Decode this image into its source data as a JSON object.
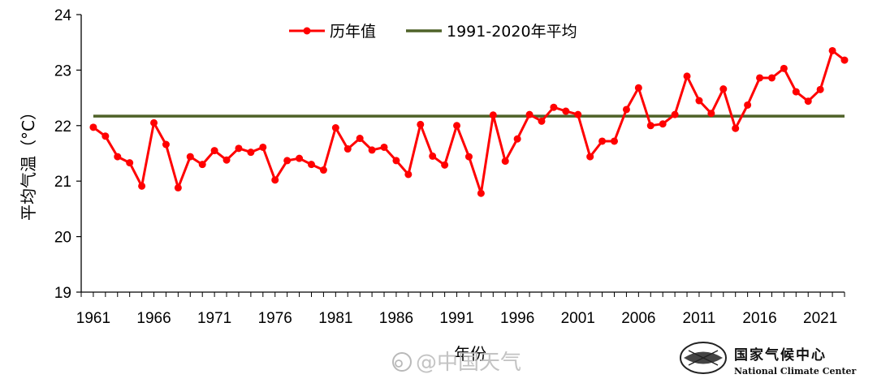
{
  "chart_data": {
    "type": "line",
    "ylabel": "平均气温（°C）",
    "xlabel": "年份",
    "ylim": [
      19,
      24
    ],
    "yticks": [
      19,
      20,
      21,
      22,
      23,
      24
    ],
    "xticks": [
      1961,
      1966,
      1971,
      1976,
      1981,
      1986,
      1991,
      1996,
      2001,
      2006,
      2011,
      2016,
      2021
    ],
    "x": [
      1961,
      1962,
      1963,
      1964,
      1965,
      1966,
      1967,
      1968,
      1969,
      1970,
      1971,
      1972,
      1973,
      1974,
      1975,
      1976,
      1977,
      1978,
      1979,
      1980,
      1981,
      1982,
      1983,
      1984,
      1985,
      1986,
      1987,
      1988,
      1989,
      1990,
      1991,
      1992,
      1993,
      1994,
      1995,
      1996,
      1997,
      1998,
      1999,
      2000,
      2001,
      2002,
      2003,
      2004,
      2005,
      2006,
      2007,
      2008,
      2009,
      2010,
      2011,
      2012,
      2013,
      2014,
      2015,
      2016,
      2017,
      2018,
      2019,
      2020,
      2021,
      2022,
      2023
    ],
    "series": [
      {
        "name": "历年值",
        "color": "#ff0000",
        "values": [
          21.97,
          21.81,
          21.44,
          21.33,
          20.91,
          22.05,
          21.66,
          20.88,
          21.44,
          21.3,
          21.55,
          21.38,
          21.59,
          21.52,
          21.61,
          21.02,
          21.37,
          21.41,
          21.3,
          21.2,
          21.96,
          21.58,
          21.77,
          21.56,
          21.61,
          21.37,
          21.12,
          22.02,
          21.45,
          21.29,
          22.0,
          21.44,
          20.78,
          22.19,
          21.36,
          21.76,
          22.2,
          22.08,
          22.33,
          22.26,
          22.2,
          21.44,
          21.72,
          21.72,
          22.29,
          22.68,
          22.0,
          22.03,
          22.2,
          22.89,
          22.45,
          22.22,
          22.66,
          21.95,
          22.37,
          22.86,
          22.86,
          23.03,
          22.61,
          22.44,
          22.65,
          23.35,
          23.18
        ]
      },
      {
        "name": "1991-2020年平均",
        "color": "#4f6228",
        "constant": 22.17
      }
    ],
    "legend": "top-center",
    "grid": false
  },
  "watermark": "@中国天气",
  "logo": {
    "name_cn": "国家气候中心",
    "name_en": "National Climate Center"
  }
}
